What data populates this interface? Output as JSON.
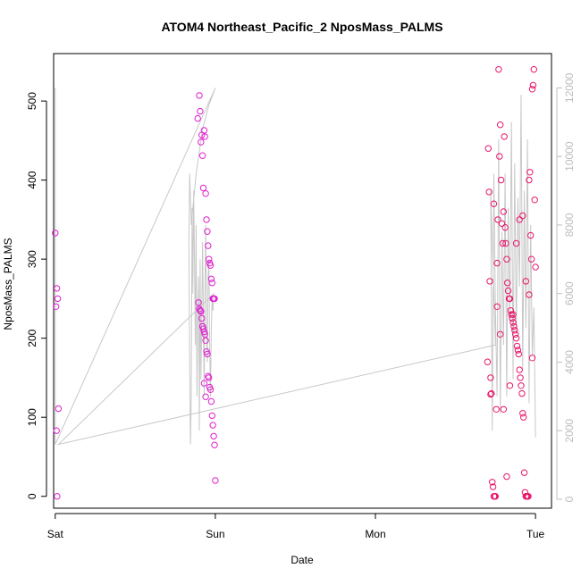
{
  "chart_data": {
    "type": "scatter",
    "title": "ATOM4 Northeast_Pacific_2 NposMass_PALMS",
    "xlabel": "Date",
    "ylabel": "NposMass_PALMS",
    "xlim": [
      -0.01,
      3.1
    ],
    "ylim": [
      -15,
      560
    ],
    "y2lim": [
      -260,
      13000
    ],
    "x_ticks": [
      {
        "value": 0,
        "label": "Sat"
      },
      {
        "value": 1,
        "label": "Sun"
      },
      {
        "value": 2,
        "label": "Mon"
      },
      {
        "value": 3,
        "label": "Tue"
      }
    ],
    "y_ticks": [
      0,
      100,
      200,
      300,
      400,
      500
    ],
    "y2_ticks": [
      0,
      2000,
      4000,
      6000,
      8000,
      10000,
      12000
    ],
    "grid": false,
    "legend": "none",
    "colors": {
      "background": "#ffffff",
      "axis": "#000000",
      "secondary_axis": "#bdbdbd",
      "line": "#c8c8c8",
      "points_early": "#e020d0",
      "points_late": "#e8166a"
    },
    "series": [
      {
        "type": "line",
        "axis": "right",
        "x": [
          0.0,
          0.0,
          1.0,
          1.0,
          0.96,
          0.92,
          0.88,
          0.85,
          0.84,
          0.835,
          0.84,
          0.845,
          0.85,
          0.855,
          0.86,
          0.865,
          0.87,
          0.875,
          0.88,
          0.885,
          0.89,
          0.895,
          0.9,
          0.905,
          0.91,
          0.915,
          0.92,
          0.925,
          0.93,
          0.935,
          0.94,
          0.945,
          0.95,
          0.955,
          0.96,
          0.965,
          0.97,
          0.975,
          0.98,
          0.985,
          0.99,
          0.02,
          2.75,
          2.72,
          2.73,
          2.74,
          2.75,
          2.76,
          2.77,
          2.78,
          2.79,
          2.8,
          2.81,
          2.82,
          2.83,
          2.84,
          2.85,
          2.86,
          2.87,
          2.88,
          2.89,
          2.9,
          2.91,
          2.92,
          2.93,
          2.94,
          2.95,
          2.96,
          2.97,
          2.98,
          2.99,
          3.0
        ],
        "y": [
          12000,
          1600,
          12000,
          12000,
          11500,
          10800,
          9500,
          8000,
          9500,
          7500,
          4000,
          1600,
          3000,
          8500,
          6000,
          9000,
          7000,
          4500,
          8000,
          3000,
          5500,
          6500,
          2000,
          7000,
          3500,
          5000,
          7500,
          5500,
          3000,
          6000,
          8000,
          5000,
          4000,
          6500,
          7000,
          4500,
          3000,
          5000,
          5800,
          5500,
          6000,
          1600,
          4500,
          9000,
          2000,
          9500,
          5500,
          3000,
          10500,
          2500,
          7800,
          4500,
          9500,
          3000,
          8500,
          5200,
          11000,
          3500,
          9800,
          4800,
          8800,
          6200,
          11800,
          3800,
          9000,
          5000,
          10500,
          2800,
          8000,
          4200,
          5600,
          1800
        ]
      },
      {
        "type": "scatter",
        "axis": "left",
        "name_color": "#e020d0",
        "x": [
          0.0,
          0.01,
          0.015,
          0.005,
          0.02,
          0.008,
          0.012,
          0.89,
          0.9,
          0.905,
          0.91,
          0.915,
          0.92,
          0.925,
          0.93,
          0.935,
          0.94,
          0.945,
          0.95,
          0.955,
          0.96,
          0.965,
          0.97,
          0.975,
          0.98,
          0.985,
          0.99,
          0.995,
          0.895,
          0.9,
          0.905,
          0.91,
          0.915,
          0.92,
          0.925,
          0.93,
          0.935,
          0.94,
          0.945,
          0.95,
          0.955,
          0.96,
          0.965,
          0.97,
          0.975,
          0.98,
          0.985,
          0.99,
          0.995,
          1.0,
          0.92,
          0.93,
          0.94
        ],
        "y": [
          333,
          263,
          250,
          240,
          111,
          83,
          0,
          478,
          507,
          487,
          448,
          457,
          431,
          390,
          463,
          455,
          383,
          350,
          335,
          317,
          300,
          295,
          292,
          275,
          270,
          250,
          250,
          250,
          245,
          237,
          235,
          234,
          225,
          215,
          212,
          208,
          205,
          197,
          183,
          180,
          152,
          150,
          138,
          135,
          120,
          102,
          90,
          76,
          65,
          20,
          215,
          143,
          126
        ]
      },
      {
        "type": "scatter",
        "axis": "left",
        "name_color": "#e8166a",
        "x": [
          2.7,
          2.705,
          2.71,
          2.715,
          2.72,
          2.725,
          2.73,
          2.735,
          2.74,
          2.745,
          2.75,
          2.755,
          2.76,
          2.765,
          2.77,
          2.775,
          2.78,
          2.785,
          2.79,
          2.795,
          2.8,
          2.805,
          2.81,
          2.815,
          2.82,
          2.825,
          2.83,
          2.835,
          2.84,
          2.845,
          2.85,
          2.855,
          2.86,
          2.865,
          2.87,
          2.875,
          2.88,
          2.885,
          2.89,
          2.895,
          2.9,
          2.905,
          2.91,
          2.915,
          2.92,
          2.925,
          2.93,
          2.935,
          2.94,
          2.945,
          2.95,
          2.955,
          2.96,
          2.965,
          2.97,
          2.975,
          2.98,
          2.985,
          2.99,
          2.995,
          3.0,
          2.72,
          2.74,
          2.76,
          2.78,
          2.8,
          2.82,
          2.84,
          2.86,
          2.88,
          2.9,
          2.92,
          2.94,
          2.96,
          2.98
        ],
        "y": [
          170,
          440,
          385,
          272,
          150,
          130,
          18,
          12,
          0,
          0,
          0,
          110,
          240,
          350,
          540,
          430,
          470,
          400,
          345,
          320,
          360,
          455,
          340,
          320,
          300,
          270,
          260,
          250,
          250,
          235,
          230,
          225,
          220,
          215,
          210,
          205,
          200,
          190,
          185,
          180,
          160,
          150,
          140,
          130,
          105,
          100,
          30,
          5,
          0,
          0,
          0,
          0,
          400,
          410,
          330,
          300,
          515,
          520,
          540,
          375,
          290,
          129,
          370,
          295,
          205,
          110,
          25,
          140,
          230,
          320,
          350,
          355,
          272,
          255,
          175
        ]
      }
    ]
  }
}
